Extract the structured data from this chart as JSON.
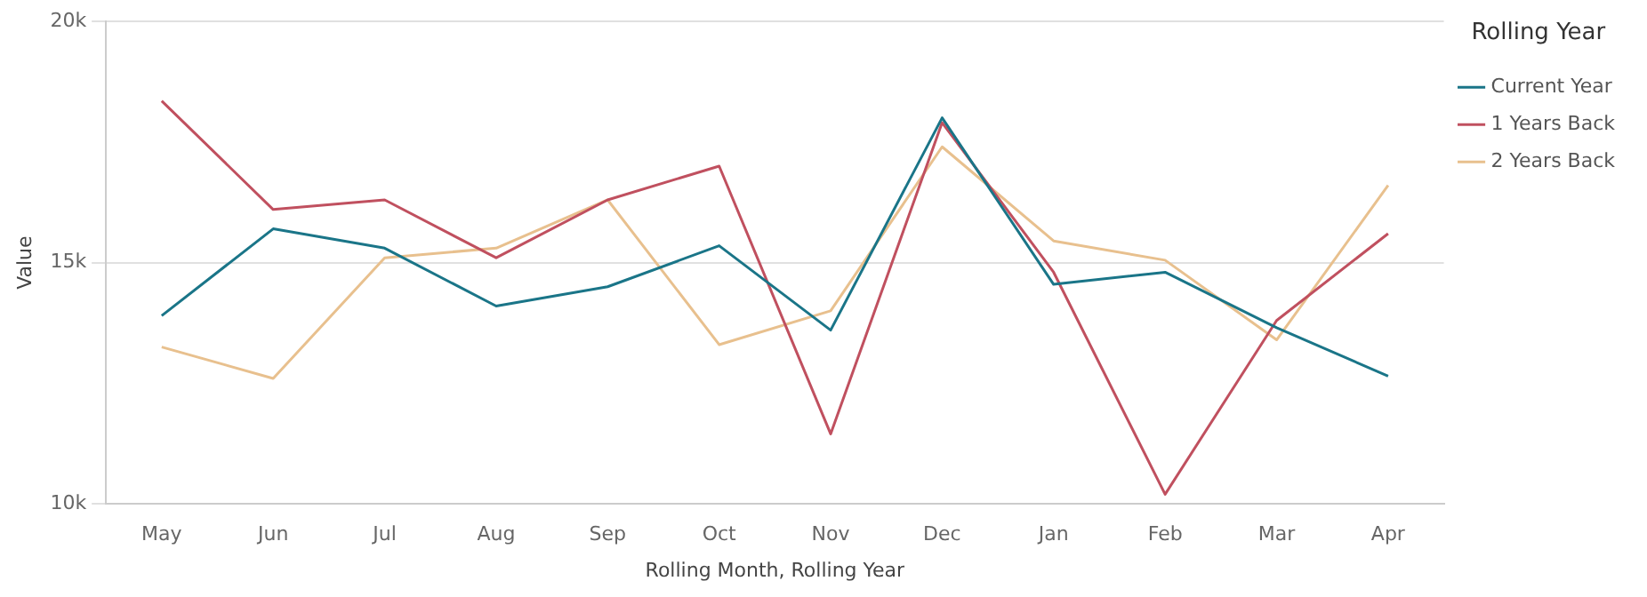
{
  "chart_data": {
    "type": "line",
    "xlabel": "Rolling Month, Rolling Year",
    "ylabel": "Value",
    "legend_title": "Rolling Year",
    "legend": "right",
    "grid": "y",
    "marker": "none",
    "line_style": "solid",
    "categories": [
      "May",
      "Jun",
      "Jul",
      "Aug",
      "Sep",
      "Oct",
      "Nov",
      "Dec",
      "Jan",
      "Feb",
      "Mar",
      "Apr"
    ],
    "ylim": [
      10000,
      20000
    ],
    "yticks": [
      {
        "value": 10000,
        "label": "10k"
      },
      {
        "value": 15000,
        "label": "15k"
      },
      {
        "value": 20000,
        "label": "20k"
      }
    ],
    "series": [
      {
        "name": "Current Year",
        "color": "#1a7588",
        "values": [
          13900,
          15700,
          15300,
          14100,
          14500,
          15350,
          13600,
          18000,
          14550,
          14800,
          13650,
          12650
        ]
      },
      {
        "name": "1 Years Back",
        "color": "#c0505f",
        "values": [
          18350,
          16100,
          16300,
          15100,
          16300,
          17000,
          11450,
          17900,
          14800,
          10200,
          13800,
          15600
        ]
      },
      {
        "name": "2 Years Back",
        "color": "#e8c08e",
        "values": [
          13250,
          12600,
          15100,
          15300,
          16300,
          13300,
          14000,
          17400,
          15450,
          15050,
          13400,
          16600
        ]
      }
    ]
  }
}
